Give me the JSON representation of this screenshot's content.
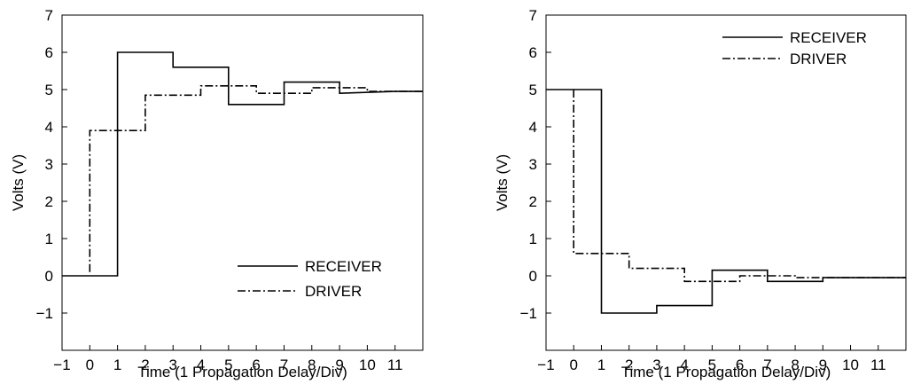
{
  "chart_data": [
    {
      "type": "line",
      "title": "",
      "xlabel": "Time  (1 Propagation Delay/Div)",
      "ylabel": "Volts  (V)",
      "xlim": [
        -1,
        12
      ],
      "ylim": [
        -2,
        7
      ],
      "xticks": [
        -1,
        0,
        1,
        2,
        3,
        4,
        5,
        6,
        7,
        8,
        9,
        10,
        11
      ],
      "xtick_labels": [
        "−1",
        "0",
        "1",
        "2",
        "3",
        "4",
        "5",
        "6",
        "7",
        "8",
        "9",
        "10",
        "11"
      ],
      "yticks": [
        -1,
        0,
        1,
        2,
        3,
        4,
        5,
        6,
        7
      ],
      "ytick_labels": [
        "−1",
        "0",
        "1",
        "2",
        "3",
        "4",
        "5",
        "6",
        "7"
      ],
      "grid": false,
      "legend_position": "bottom-right",
      "series": [
        {
          "name": "RECEIVER",
          "style": "solid",
          "x": [
            -1,
            1,
            1,
            3,
            3,
            5,
            5,
            7,
            7,
            9,
            9,
            11,
            12
          ],
          "y": [
            0,
            0,
            6.0,
            6.0,
            5.6,
            5.6,
            4.6,
            4.6,
            5.2,
            5.2,
            4.9,
            4.95,
            4.95
          ]
        },
        {
          "name": "DRIVER",
          "style": "dash-dot",
          "x": [
            0,
            0,
            2,
            2,
            4,
            4,
            6,
            6,
            8,
            8,
            10,
            10,
            12
          ],
          "y": [
            0.1,
            3.9,
            3.9,
            4.85,
            4.85,
            5.1,
            5.1,
            4.9,
            4.9,
            5.05,
            5.05,
            4.95,
            4.95
          ]
        }
      ]
    },
    {
      "type": "line",
      "title": "",
      "xlabel": "Time  (1 Propagation Delay/Div)",
      "ylabel": "Volts  (V)",
      "xlim": [
        -1,
        12
      ],
      "ylim": [
        -2,
        7
      ],
      "xticks": [
        -1,
        0,
        1,
        2,
        3,
        4,
        5,
        6,
        7,
        8,
        9,
        10,
        11
      ],
      "xtick_labels": [
        "−1",
        "0",
        "1",
        "2",
        "3",
        "4",
        "5",
        "6",
        "7",
        "8",
        "9",
        "10",
        "11"
      ],
      "yticks": [
        -1,
        0,
        1,
        2,
        3,
        4,
        5,
        6,
        7
      ],
      "ytick_labels": [
        "−1",
        "0",
        "1",
        "2",
        "3",
        "4",
        "5",
        "6",
        "7"
      ],
      "grid": false,
      "legend_position": "top-right",
      "series": [
        {
          "name": "RECEIVER",
          "style": "solid",
          "x": [
            -1,
            1,
            1,
            3,
            3,
            5,
            5,
            7,
            7,
            9,
            9,
            12
          ],
          "y": [
            5.0,
            5.0,
            -1.0,
            -1.0,
            -0.8,
            -0.8,
            0.15,
            0.15,
            -0.15,
            -0.15,
            -0.05,
            -0.05
          ]
        },
        {
          "name": "DRIVER",
          "style": "dash-dot",
          "x": [
            0,
            0,
            2,
            2,
            4,
            4,
            6,
            6,
            8,
            8,
            12
          ],
          "y": [
            5.0,
            0.6,
            0.6,
            0.2,
            0.2,
            -0.15,
            -0.15,
            0.0,
            0.0,
            -0.05,
            -0.05
          ]
        }
      ]
    }
  ]
}
